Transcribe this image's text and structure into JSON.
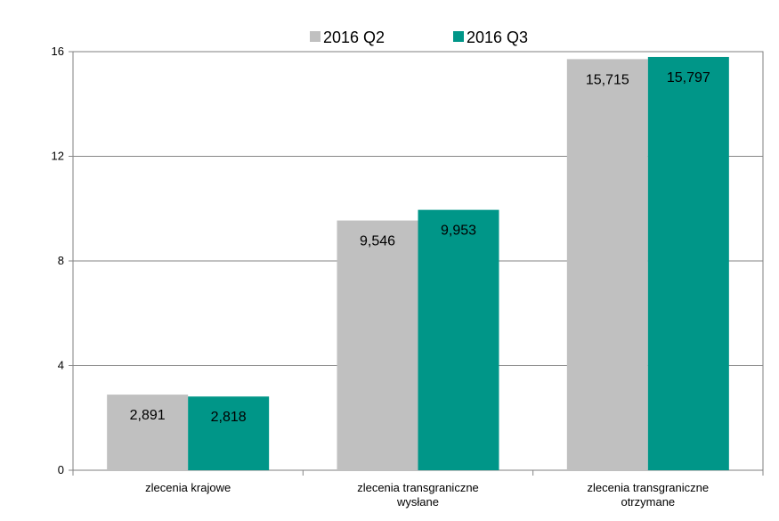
{
  "chart_data": {
    "type": "bar",
    "categories": [
      [
        "zlecenia krajowe"
      ],
      [
        "zlecenia transgraniczne",
        "wysłane"
      ],
      [
        "zlecenia transgraniczne",
        "otrzymane"
      ]
    ],
    "series": [
      {
        "name": "2016 Q2",
        "color": "#c0c0c0",
        "values": [
          2.891,
          9.546,
          15.715
        ],
        "labels": [
          "2,891",
          "9,546",
          "15,715"
        ]
      },
      {
        "name": "2016 Q3",
        "color": "#009688",
        "values": [
          2.818,
          9.953,
          15.797
        ],
        "labels": [
          "2,818",
          "9,953",
          "15,797"
        ]
      }
    ],
    "y_ticks": [
      0,
      4,
      8,
      12,
      16
    ],
    "ylim": [
      0,
      16
    ],
    "grid": true,
    "legend": "top-center"
  }
}
